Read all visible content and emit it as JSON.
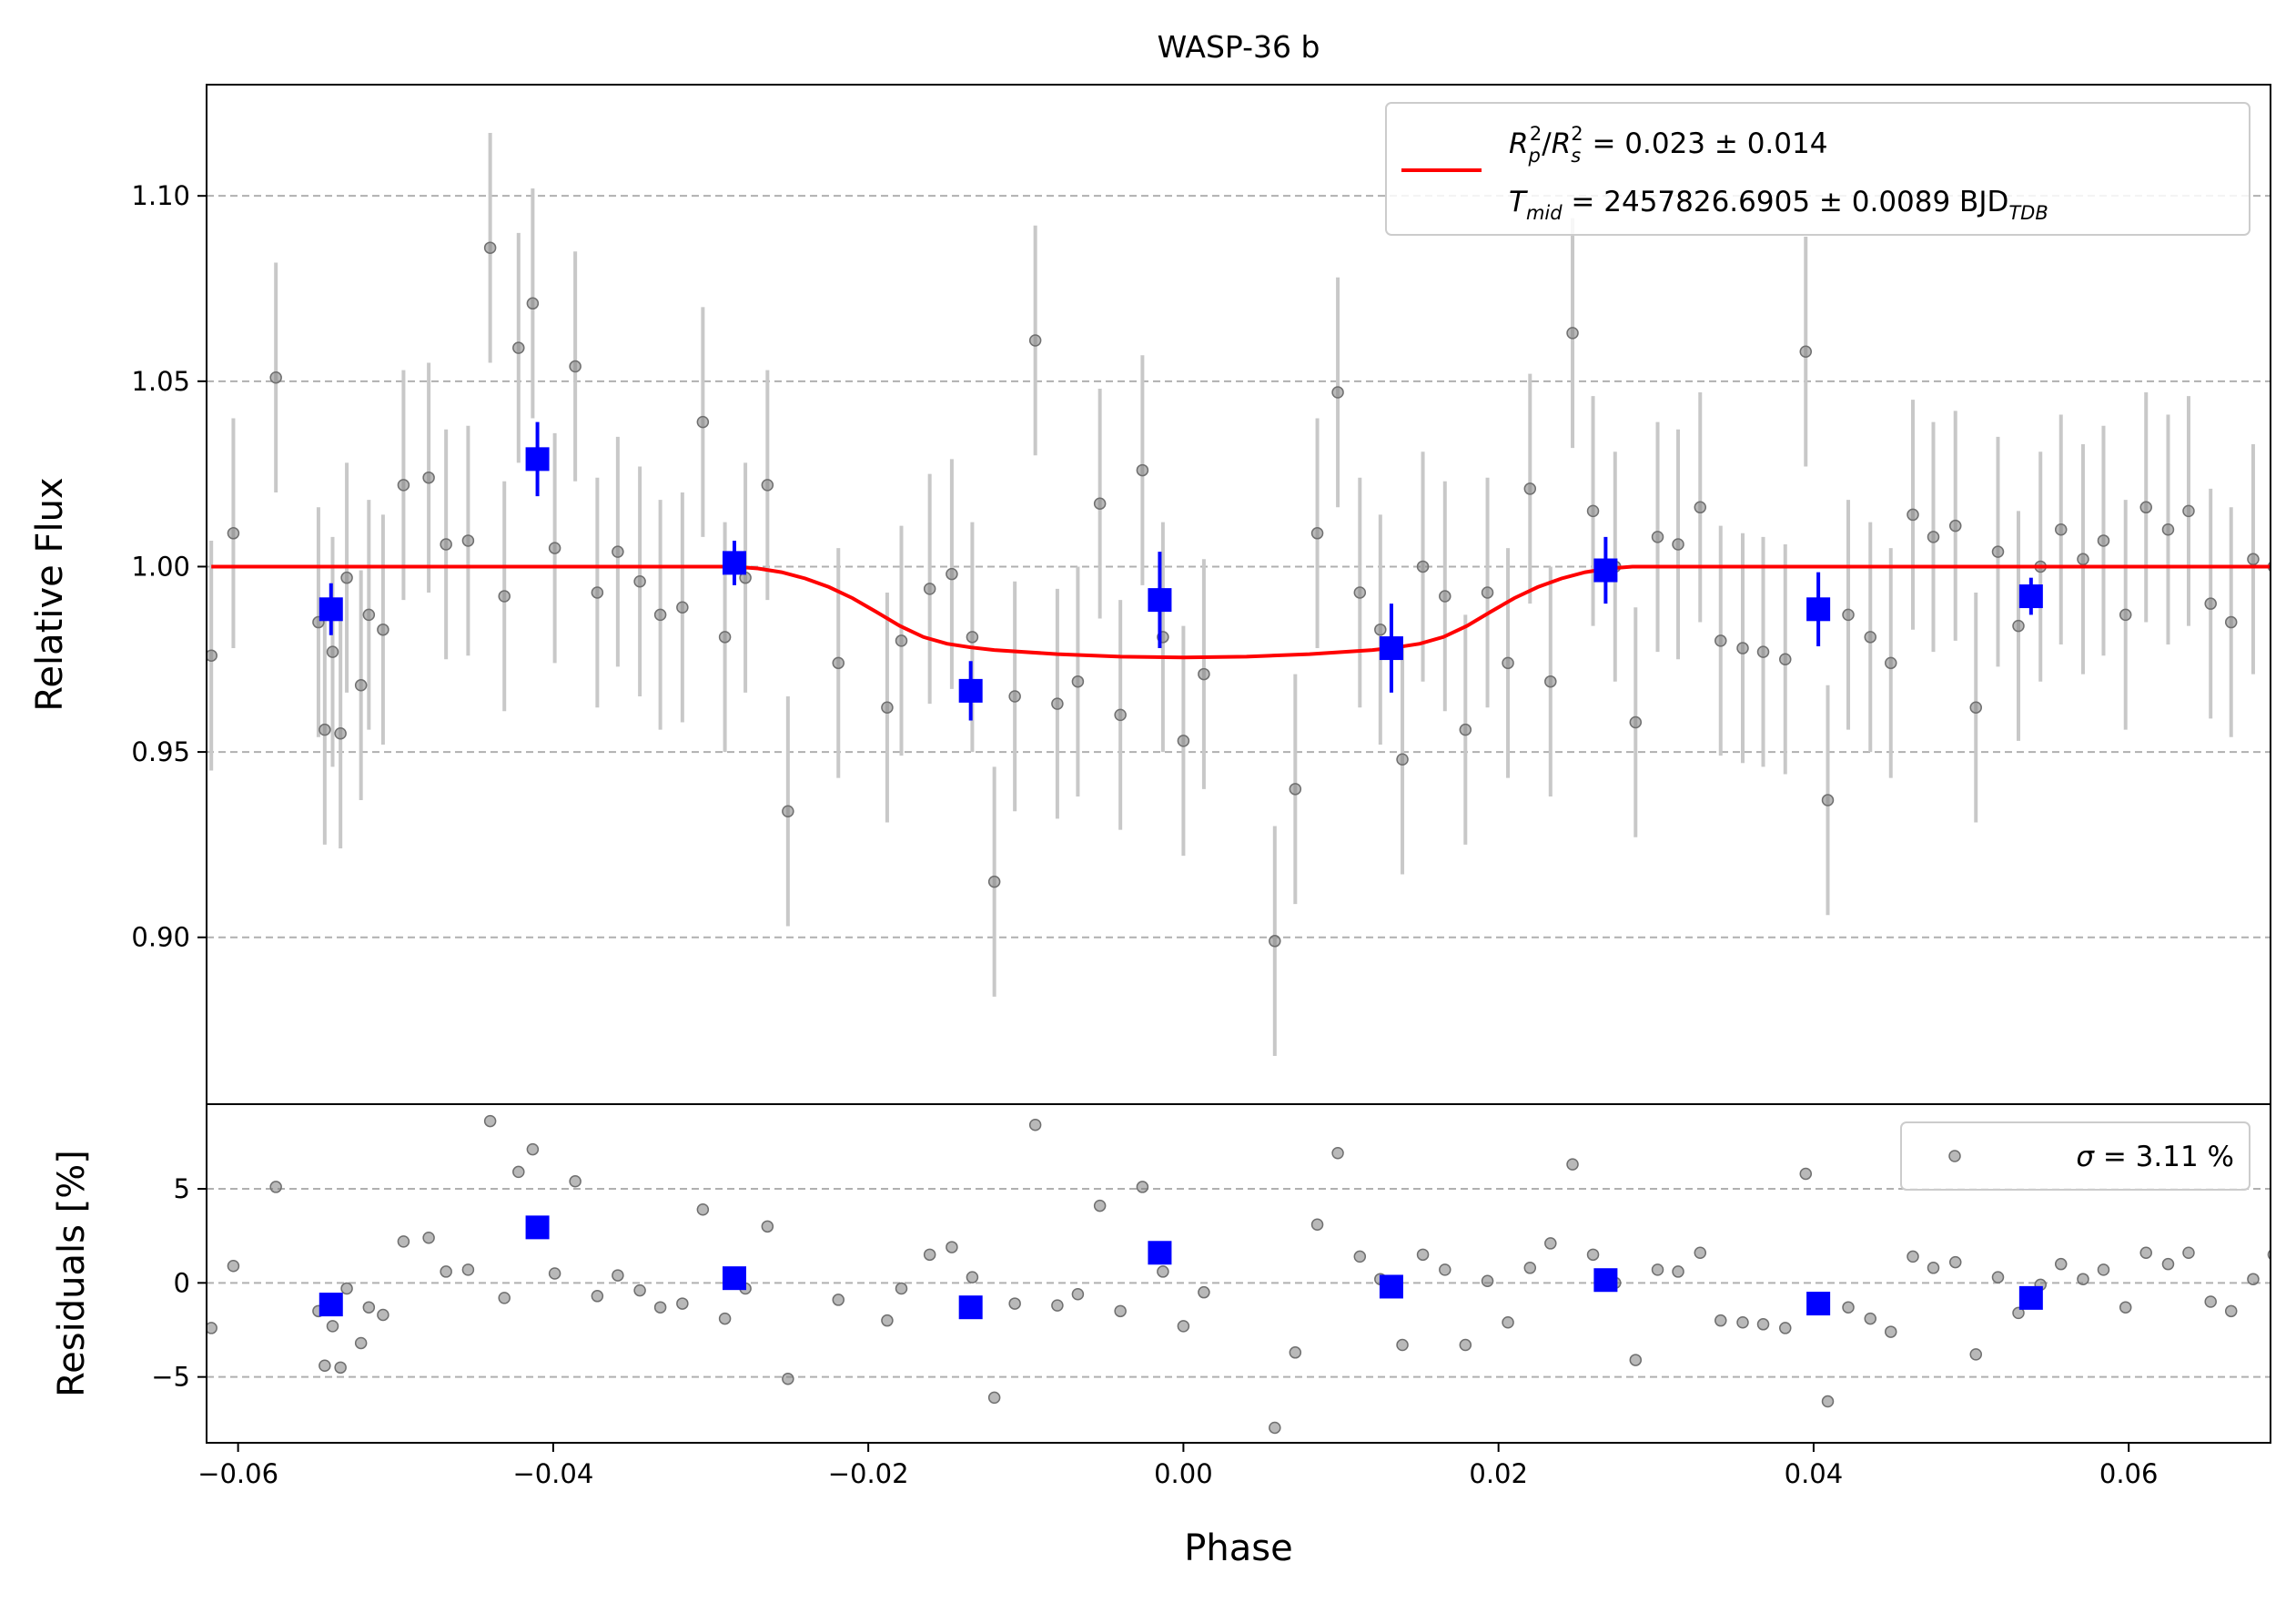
{
  "chart_data": {
    "type": "scatter",
    "title": "WASP-36 b",
    "xlabel": "Phase",
    "legend_placement": "upper-right",
    "main_panel": {
      "ylabel": "Relative Flux",
      "xlim": [
        -0.062,
        0.069
      ],
      "ylim": [
        0.855,
        1.13
      ],
      "grid_y": true,
      "xticks": [
        -0.06,
        -0.04,
        -0.02,
        0.0,
        0.02,
        0.04,
        0.06
      ],
      "xtick_labels": [
        "−0.06",
        "−0.04",
        "−0.02",
        "0.00",
        "0.02",
        "0.04",
        "0.06"
      ],
      "yticks": [
        0.9,
        0.95,
        1.0,
        1.05,
        1.1
      ],
      "ytick_labels": [
        "0.90",
        "0.95",
        "1.00",
        "1.05",
        "1.10"
      ],
      "legend": {
        "line1": {
          "R": "R",
          "p_sub": "p",
          "sup2": "2",
          "slash": "/",
          "s_sub": "s",
          "rest": " = 0.023 ± 0.014"
        },
        "line2": {
          "T": "T",
          "mid_sub": "mid",
          "rest": " = 2457826.6905 ± 0.0089 BJD",
          "tdb_sub": "TDB"
        }
      },
      "model": {
        "color": "#ff0000",
        "baseline": 1.0,
        "depth": 0.025,
        "x": [
          -0.0617,
          -0.0285,
          -0.027,
          -0.0255,
          -0.024,
          -0.0225,
          -0.021,
          -0.0195,
          -0.018,
          -0.0165,
          -0.015,
          -0.0135,
          -0.012,
          -0.008,
          -0.004,
          0.0,
          0.004,
          0.008,
          0.012,
          0.0135,
          0.015,
          0.0165,
          0.018,
          0.0195,
          0.021,
          0.0225,
          0.024,
          0.0255,
          0.027,
          0.0285,
          0.069
        ],
        "y": [
          1.0,
          1.0,
          0.9995,
          0.9985,
          0.9968,
          0.9945,
          0.9915,
          0.9878,
          0.984,
          0.981,
          0.9792,
          0.9782,
          0.9775,
          0.9764,
          0.9757,
          0.9755,
          0.9757,
          0.9764,
          0.9775,
          0.9782,
          0.9792,
          0.981,
          0.984,
          0.9878,
          0.9915,
          0.9945,
          0.9968,
          0.9985,
          0.9995,
          1.0,
          1.0
        ]
      },
      "data_points": {
        "color": "#808080",
        "x": [
          -0.0617,
          -0.0603,
          -0.0576,
          -0.0549,
          -0.0545,
          -0.054,
          -0.0535,
          -0.0531,
          -0.0522,
          -0.0517,
          -0.0508,
          -0.0495,
          -0.0479,
          -0.0468,
          -0.0454,
          -0.044,
          -0.0431,
          -0.0422,
          -0.0413,
          -0.0399,
          -0.0386,
          -0.0372,
          -0.0359,
          -0.0345,
          -0.0332,
          -0.0318,
          -0.0305,
          -0.0291,
          -0.0278,
          -0.0264,
          -0.0251,
          -0.0219,
          -0.0188,
          -0.0179,
          -0.0161,
          -0.0147,
          -0.0134,
          -0.012,
          -0.0107,
          -0.0094,
          -0.008,
          -0.0067,
          -0.0053,
          -0.004,
          -0.0026,
          -0.0013,
          0.0,
          0.0013,
          0.0058,
          0.0071,
          0.0085,
          0.0098,
          0.0112,
          0.0125,
          0.0139,
          0.0152,
          0.0166,
          0.0179,
          0.0193,
          0.0206,
          0.022,
          0.0233,
          0.0247,
          0.026,
          0.0274,
          0.0287,
          0.0301,
          0.0314,
          0.0328,
          0.0341,
          0.0355,
          0.0368,
          0.0382,
          0.0395,
          0.0409,
          0.0422,
          0.0436,
          0.0449,
          0.0463,
          0.0476,
          0.049,
          0.0503,
          0.0517,
          0.053,
          0.0544,
          0.0557,
          0.0571,
          0.0584,
          0.0598,
          0.0611,
          0.0625,
          0.0638,
          0.0652,
          0.0665,
          0.0679,
          0.0692
        ],
        "y": [
          0.976,
          1.009,
          1.051,
          0.985,
          0.956,
          0.977,
          0.955,
          0.997,
          0.968,
          0.987,
          0.983,
          1.022,
          1.024,
          1.006,
          1.007,
          1.086,
          0.992,
          1.059,
          1.071,
          1.005,
          1.054,
          0.993,
          1.004,
          0.996,
          0.987,
          0.989,
          1.039,
          0.981,
          0.997,
          1.022,
          0.934,
          0.974,
          0.962,
          0.98,
          0.994,
          0.998,
          0.981,
          0.915,
          0.965,
          1.061,
          0.963,
          0.969,
          1.017,
          0.96,
          1.026,
          0.981,
          0.953,
          0.971,
          0.899,
          0.94,
          1.009,
          1.047,
          0.993,
          0.983,
          0.948,
          1.0,
          0.992,
          0.956,
          0.993,
          0.974,
          1.021,
          0.969,
          1.063,
          1.015,
          1.0,
          0.958,
          1.008,
          1.006,
          1.016,
          0.98,
          0.978,
          0.977,
          0.975,
          1.058,
          0.937,
          0.987,
          0.981,
          0.974,
          1.014,
          1.008,
          1.011,
          0.962,
          1.004,
          0.984,
          1.0,
          1.01,
          1.002,
          1.007,
          0.987,
          1.016,
          1.01,
          1.015,
          0.99,
          0.985,
          1.002,
          1.0
        ],
        "yerr": 0.031
      },
      "binned": {
        "color": "#0000ff",
        "x": [
          -0.0541,
          -0.041,
          -0.0285,
          -0.0135,
          -0.0015,
          0.0132,
          0.0268,
          0.0403,
          0.0538
        ],
        "y": [
          0.9885,
          1.029,
          1.001,
          0.9665,
          0.991,
          0.978,
          0.999,
          0.9885,
          0.992
        ],
        "yerr": [
          0.007,
          0.01,
          0.006,
          0.008,
          0.013,
          0.012,
          0.009,
          0.01,
          0.005
        ]
      }
    },
    "residual_panel": {
      "ylabel": "Residuals [%]",
      "ylim": [
        -8.5,
        9.5
      ],
      "grid_y": true,
      "yticks": [
        -5,
        0,
        5
      ],
      "ytick_labels": [
        "−5",
        "0",
        "5"
      ],
      "legend": {
        "sigma": "σ",
        "rest": " = 3.11 %"
      },
      "points_y": [
        -2.4,
        0.9,
        5.1,
        -1.5,
        -4.4,
        -2.3,
        -4.5,
        -0.3,
        -3.2,
        -1.3,
        -1.7,
        2.2,
        2.4,
        0.6,
        0.7,
        8.6,
        -0.8,
        5.9,
        7.1,
        0.5,
        5.4,
        -0.7,
        0.4,
        -0.4,
        -1.3,
        -1.1,
        3.9,
        -1.9,
        -0.3,
        3.0,
        -5.1,
        -0.9,
        -2.0,
        -0.3,
        1.5,
        1.9,
        0.3,
        -6.1,
        -1.1,
        8.4,
        -1.2,
        -0.6,
        4.1,
        -1.5,
        5.1,
        0.6,
        -2.3,
        -0.5,
        -7.7,
        -3.7,
        3.1,
        6.9,
        1.4,
        0.2,
        -3.3,
        1.5,
        0.7,
        -3.3,
        0.1,
        -2.1,
        0.8,
        2.1,
        6.3,
        1.5,
        0.0,
        -4.1,
        0.7,
        0.6,
        1.6,
        -2.0,
        -2.1,
        -2.2,
        -2.4,
        5.8,
        -6.3,
        -1.3,
        -1.9,
        -2.6,
        1.4,
        0.8,
        1.1,
        -3.8,
        0.3,
        -1.6,
        -0.1,
        1.0,
        0.2,
        0.7,
        -1.3,
        1.6,
        1.0,
        1.6,
        -1.0,
        -1.5,
        0.2,
        1.5
      ],
      "binned_y": [
        -1.15,
        2.95,
        0.25,
        -1.3,
        1.6,
        -0.2,
        0.15,
        -1.1,
        -0.8
      ]
    }
  }
}
